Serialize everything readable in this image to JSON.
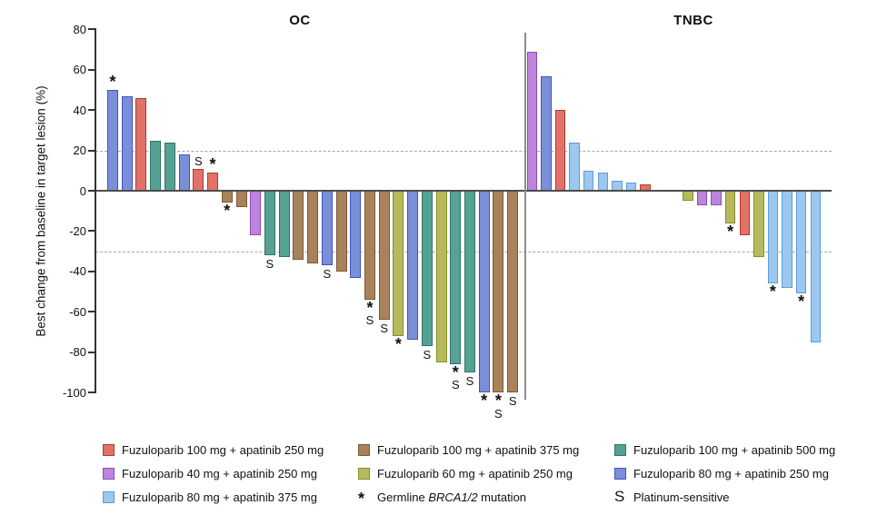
{
  "chart_data": {
    "type": "bar",
    "subtype": "waterfall",
    "title": "",
    "ylabel": "Best change from baseline in target lesion (%)",
    "ylim": [
      -100,
      80
    ],
    "yticks": [
      80,
      60,
      40,
      20,
      0,
      -20,
      -40,
      -60,
      -80,
      -100
    ],
    "reference_lines": [
      20,
      -30
    ],
    "legend_position": "bottom",
    "groups": [
      {
        "id": "f100a250",
        "label": "Fuzuloparib 100 mg + apatinib 250 mg",
        "fill": "#E27268",
        "stroke": "#B03A30"
      },
      {
        "id": "f100a375",
        "label": "Fuzuloparib 100 mg + apatinib 375 mg",
        "fill": "#A8825A",
        "stroke": "#7A5A33"
      },
      {
        "id": "f100a500",
        "label": "Fuzuloparib 100 mg + apatinib 500 mg",
        "fill": "#55A295",
        "stroke": "#2F7367"
      },
      {
        "id": "f40a250",
        "label": "Fuzuloparib 40 mg + apatinib 250 mg",
        "fill": "#BC85DC",
        "stroke": "#9149BE"
      },
      {
        "id": "f60a250",
        "label": "Fuzuloparib 60 mg + apatinib 250 mg",
        "fill": "#B6BA5C",
        "stroke": "#858E2A"
      },
      {
        "id": "f80a250",
        "label": "Fuzuloparib 80 mg + apatinib 250 mg",
        "fill": "#7B8FD8",
        "stroke": "#4153BE"
      },
      {
        "id": "f80a375",
        "label": "Fuzuloparib 80 mg + apatinib 375 mg",
        "fill": "#9CC7EE",
        "stroke": "#5D9CD8"
      }
    ],
    "annotations_legend": [
      {
        "symbol": "*",
        "label_pre": "Germline ",
        "label_italic": "BRCA1/2",
        "label_post": " mutation"
      },
      {
        "symbol": "S",
        "label": "Platinum-sensitive"
      }
    ],
    "panels": [
      {
        "name": "OC",
        "bars": [
          {
            "value": 50,
            "group": "f80a250",
            "marks": [
              "*"
            ]
          },
          {
            "value": 47,
            "group": "f80a250",
            "marks": []
          },
          {
            "value": 46,
            "group": "f100a250",
            "marks": []
          },
          {
            "value": 25,
            "group": "f100a500",
            "marks": []
          },
          {
            "value": 24,
            "group": "f100a500",
            "marks": []
          },
          {
            "value": 18,
            "group": "f80a250",
            "marks": []
          },
          {
            "value": 11,
            "group": "f100a250",
            "marks": [
              "S"
            ]
          },
          {
            "value": 9,
            "group": "f100a250",
            "marks": [
              "*"
            ]
          },
          {
            "value": -6,
            "group": "f100a375",
            "marks": [
              "*"
            ]
          },
          {
            "value": -8,
            "group": "f100a375",
            "marks": []
          },
          {
            "value": -22,
            "group": "f40a250",
            "marks": []
          },
          {
            "value": -32,
            "group": "f100a500",
            "marks": [
              "S"
            ]
          },
          {
            "value": -33,
            "group": "f100a500",
            "marks": []
          },
          {
            "value": -34,
            "group": "f100a375",
            "marks": []
          },
          {
            "value": -36,
            "group": "f100a375",
            "marks": []
          },
          {
            "value": -37,
            "group": "f80a250",
            "marks": [
              "S"
            ]
          },
          {
            "value": -40,
            "group": "f100a375",
            "marks": []
          },
          {
            "value": -43,
            "group": "f80a250",
            "marks": []
          },
          {
            "value": -54,
            "group": "f100a375",
            "marks": [
              "*",
              "S"
            ]
          },
          {
            "value": -64,
            "group": "f100a375",
            "marks": [
              "S"
            ]
          },
          {
            "value": -72,
            "group": "f60a250",
            "marks": [
              "*"
            ]
          },
          {
            "value": -74,
            "group": "f80a250",
            "marks": []
          },
          {
            "value": -77,
            "group": "f100a500",
            "marks": [
              "S"
            ]
          },
          {
            "value": -85,
            "group": "f60a250",
            "marks": []
          },
          {
            "value": -86,
            "group": "f100a500",
            "marks": [
              "*",
              "S"
            ]
          },
          {
            "value": -90,
            "group": "f100a500",
            "marks": [
              "S"
            ]
          },
          {
            "value": -100,
            "group": "f80a250",
            "marks": [
              "*"
            ]
          },
          {
            "value": -100,
            "group": "f100a375",
            "marks": [
              "*",
              "S"
            ]
          },
          {
            "value": -100,
            "group": "f100a375",
            "marks": [
              "S"
            ]
          }
        ]
      },
      {
        "name": "TNBC",
        "bars": [
          {
            "value": 69,
            "group": "f40a250",
            "marks": []
          },
          {
            "value": 57,
            "group": "f80a250",
            "marks": []
          },
          {
            "value": 40,
            "group": "f100a250",
            "marks": []
          },
          {
            "value": 24,
            "group": "f80a375",
            "marks": []
          },
          {
            "value": 10,
            "group": "f80a375",
            "marks": []
          },
          {
            "value": 9,
            "group": "f80a375",
            "marks": []
          },
          {
            "value": 5,
            "group": "f80a375",
            "marks": []
          },
          {
            "value": 4,
            "group": "f80a375",
            "marks": []
          },
          {
            "value": 3,
            "group": "f100a250",
            "marks": []
          },
          {
            "value": 0,
            "group": null,
            "marks": []
          },
          {
            "value": 0,
            "group": null,
            "marks": []
          },
          {
            "value": -5,
            "group": "f60a250",
            "marks": []
          },
          {
            "value": -7,
            "group": "f40a250",
            "marks": []
          },
          {
            "value": -7,
            "group": "f40a250",
            "marks": []
          },
          {
            "value": -16,
            "group": "f60a250",
            "marks": [
              "*"
            ]
          },
          {
            "value": -22,
            "group": "f100a250",
            "marks": []
          },
          {
            "value": -33,
            "group": "f60a250",
            "marks": []
          },
          {
            "value": -46,
            "group": "f80a375",
            "marks": [
              "*"
            ]
          },
          {
            "value": -48,
            "group": "f80a375",
            "marks": []
          },
          {
            "value": -51,
            "group": "f80a375",
            "marks": [
              "*"
            ]
          },
          {
            "value": -75,
            "group": "f80a375",
            "marks": []
          }
        ]
      }
    ]
  }
}
